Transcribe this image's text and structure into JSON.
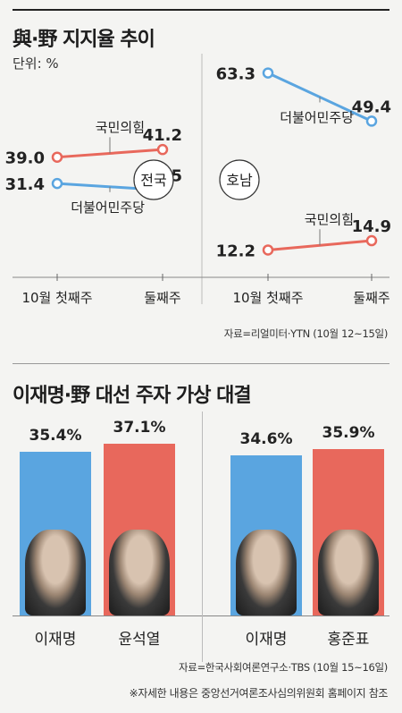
{
  "section1": {
    "title": "與·野 지지율 추이",
    "unit": "단위: %",
    "source": "자료=리얼미터·YTN (10월 12~15일)"
  },
  "section2": {
    "title": "이재명·野 대선 주자 가상 대결",
    "source": "자료=한국사회여론연구소·TBS (10월 15~16일)",
    "note": "※자세한 내용은 중앙선거여론조사심의위원회 홈페이지 참조"
  },
  "colors": {
    "ruling": "#5aa5e0",
    "opposition": "#e8685c"
  },
  "chart_data": [
    {
      "type": "line",
      "panel": "전국",
      "categories": [
        "10월 첫째주",
        "둘째주"
      ],
      "series": [
        {
          "name": "국민의힘",
          "values": [
            39.0,
            41.2
          ],
          "color": "#e8685c"
        },
        {
          "name": "더불어민주당",
          "values": [
            31.4,
            29.5
          ],
          "color": "#5aa5e0"
        }
      ],
      "ylabel": "단위: %"
    },
    {
      "type": "line",
      "panel": "호남",
      "categories": [
        "10월 첫째주",
        "둘째주"
      ],
      "series": [
        {
          "name": "더불어민주당",
          "values": [
            63.3,
            49.4
          ],
          "color": "#5aa5e0"
        },
        {
          "name": "국민의힘",
          "values": [
            12.2,
            14.9
          ],
          "color": "#e8685c"
        }
      ]
    },
    {
      "type": "bar",
      "matchups": [
        {
          "categories": [
            "이재명",
            "윤석열"
          ],
          "values": [
            35.4,
            37.1
          ],
          "labels": [
            "35.4%",
            "37.1%"
          ]
        },
        {
          "categories": [
            "이재명",
            "홍준표"
          ],
          "values": [
            34.6,
            35.9
          ],
          "labels": [
            "34.6%",
            "35.9%"
          ]
        }
      ]
    }
  ]
}
